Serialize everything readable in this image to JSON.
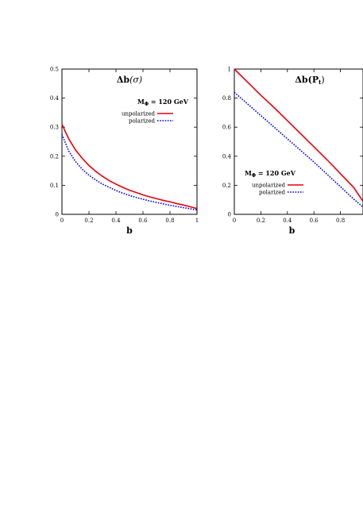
{
  "chart_data": [
    {
      "type": "line",
      "title": "Δb(σ)",
      "title_main": "Δb",
      "title_arg": "(σ)",
      "annotation": "MΦ = 120 GeV",
      "annotation_main": "M",
      "annotation_sub": "Φ",
      "annotation_rest": " = 120 GeV",
      "xlabel": "b",
      "ylabel": "",
      "xlim": [
        0,
        1
      ],
      "ylim": [
        0,
        0.5
      ],
      "xticks": [
        0,
        0.2,
        0.4,
        0.6,
        0.8,
        1
      ],
      "xtick_labels": [
        "0",
        "0.2",
        "0.4",
        "0.6",
        "0.8",
        "1"
      ],
      "yticks": [
        0,
        0.1,
        0.2,
        0.3,
        0.4,
        0.5
      ],
      "ytick_labels": [
        "0",
        "0.1",
        "0.2",
        "0.3",
        "0.4",
        "0.5"
      ],
      "legend_placement": "upper-right",
      "series": [
        {
          "name": "unpolarized",
          "color": "#e8000b",
          "style": "solid",
          "x": [
            0,
            0.05,
            0.1,
            0.15,
            0.2,
            0.25,
            0.3,
            0.35,
            0.4,
            0.45,
            0.5,
            0.55,
            0.6,
            0.65,
            0.7,
            0.75,
            0.8,
            0.85,
            0.9,
            0.95,
            1.0
          ],
          "y": [
            0.31,
            0.26,
            0.222,
            0.193,
            0.168,
            0.148,
            0.131,
            0.116,
            0.104,
            0.093,
            0.083,
            0.075,
            0.067,
            0.06,
            0.054,
            0.048,
            0.043,
            0.037,
            0.032,
            0.026,
            0.02
          ]
        },
        {
          "name": "polarized",
          "color": "#0000ee",
          "style": "dotted",
          "x": [
            0,
            0.05,
            0.1,
            0.15,
            0.2,
            0.25,
            0.3,
            0.35,
            0.4,
            0.45,
            0.5,
            0.55,
            0.6,
            0.65,
            0.7,
            0.75,
            0.8,
            0.85,
            0.9,
            0.95,
            1.0
          ],
          "y": [
            0.275,
            0.218,
            0.182,
            0.155,
            0.135,
            0.118,
            0.104,
            0.093,
            0.082,
            0.073,
            0.065,
            0.058,
            0.052,
            0.046,
            0.041,
            0.036,
            0.031,
            0.027,
            0.023,
            0.019,
            0.015
          ]
        }
      ]
    },
    {
      "type": "line",
      "title": "Δb(Pt)",
      "title_main": "Δb",
      "title_arg_open": "(P",
      "title_arg_sub": "t",
      "title_arg_close": ")",
      "annotation": "MΦ = 120 GeV",
      "annotation_main": "M",
      "annotation_sub": "Φ",
      "annotation_rest": " = 120 GeV",
      "xlabel": "b",
      "ylabel": "",
      "xlim": [
        0,
        0.97
      ],
      "ylim": [
        0,
        1
      ],
      "xticks": [
        0,
        0.2,
        0.4,
        0.6,
        0.8
      ],
      "xtick_labels": [
        "0",
        "0.2",
        "0.4",
        "0.6",
        "0.8"
      ],
      "yticks": [
        0,
        0.2,
        0.4,
        0.6,
        0.8,
        1
      ],
      "ytick_labels": [
        "0",
        "0.2",
        "0.4",
        "0.6",
        "0.8",
        "1"
      ],
      "legend_placement": "lower-left",
      "series": [
        {
          "name": "unpolarized",
          "color": "#e8000b",
          "style": "solid",
          "x": [
            0,
            0.1,
            0.2,
            0.3,
            0.4,
            0.5,
            0.6,
            0.7,
            0.8,
            0.9,
            0.97
          ],
          "y": [
            1.0,
            0.91,
            0.82,
            0.735,
            0.645,
            0.555,
            0.465,
            0.375,
            0.28,
            0.185,
            0.09
          ]
        },
        {
          "name": "polarized",
          "color": "#0000ee",
          "style": "dotted",
          "x": [
            0,
            0.1,
            0.2,
            0.3,
            0.4,
            0.5,
            0.6,
            0.7,
            0.8,
            0.9,
            0.97
          ],
          "y": [
            0.84,
            0.76,
            0.68,
            0.6,
            0.52,
            0.44,
            0.36,
            0.275,
            0.19,
            0.105,
            0.05
          ]
        }
      ]
    }
  ]
}
